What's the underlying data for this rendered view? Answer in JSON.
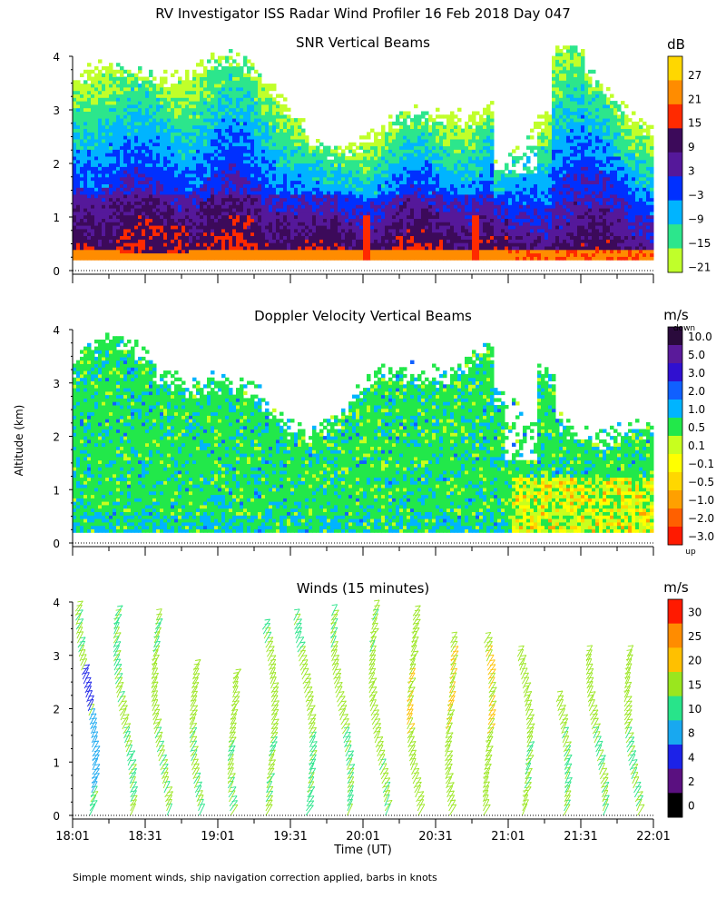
{
  "title": "RV Investigator ISS Radar Wind Profiler  16 Feb 2018 Day 047",
  "ylabel": "Altitude (km)",
  "xlabel": "Time (UT)",
  "footnote": "Simple moment winds, ship navigation correction applied, barbs in knots",
  "chart_data": [
    {
      "type": "heatmap",
      "title": "SNR Vertical Beams",
      "units": "dB",
      "ylim": [
        0,
        4
      ],
      "yticks": [
        "0",
        "1",
        "2",
        "3",
        "4"
      ],
      "colorbar_labels": [
        "27",
        "21",
        "15",
        "9",
        "3",
        "−3",
        "−9",
        "−15",
        "−21"
      ],
      "colorbar_colors": [
        "#ffd700",
        "#ff8c00",
        "#ff2a00",
        "#3c0a5a",
        "#55189a",
        "#0030ff",
        "#00b4ff",
        "#2ce68c",
        "#c0ff2a"
      ]
    },
    {
      "type": "heatmap",
      "title": "Doppler Velocity Vertical Beams",
      "units": "m/s",
      "top_note": "down",
      "bottom_note": "up",
      "ylim": [
        0,
        4
      ],
      "yticks": [
        "0",
        "1",
        "2",
        "3",
        "4"
      ],
      "colorbar_labels": [
        "10.0",
        "5.0",
        "3.0",
        "2.0",
        "1.0",
        "0.5",
        "0.1",
        "−0.1",
        "−0.5",
        "−1.0",
        "−2.0",
        "−3.0"
      ],
      "colorbar_colors": [
        "#2a0a3c",
        "#5a1a9a",
        "#3010d0",
        "#1060ff",
        "#00b4ff",
        "#22e84a",
        "#c8ff1e",
        "#ffff00",
        "#ffd700",
        "#ffa000",
        "#ff6000",
        "#ff1a00"
      ]
    },
    {
      "type": "wind-barbs",
      "title": "Winds (15 minutes)",
      "units": "m/s",
      "ylim": [
        0,
        4
      ],
      "yticks": [
        "0",
        "1",
        "2",
        "3",
        "4"
      ],
      "xticks": [
        "18:01",
        "18:31",
        "19:01",
        "19:31",
        "20:01",
        "20:31",
        "21:01",
        "21:31",
        "22:01"
      ],
      "colorbar_labels": [
        "30",
        "25",
        "20",
        "15",
        "10",
        "8",
        "4",
        "2",
        "0"
      ],
      "colorbar_colors": [
        "#ff1a00",
        "#ff8c00",
        "#ffc000",
        "#9ae61e",
        "#28e48a",
        "#18a8f0",
        "#1c22e8",
        "#5a1080",
        "#000000"
      ],
      "profile_times": [
        "18:08",
        "18:23",
        "18:38",
        "18:53",
        "19:08",
        "19:23",
        "19:38",
        "19:53",
        "20:08",
        "20:23",
        "20:38",
        "20:53",
        "21:08",
        "21:23",
        "21:38",
        "21:53"
      ],
      "profile_top_km": [
        3.9,
        3.8,
        3.7,
        2.8,
        2.6,
        3.5,
        3.7,
        3.8,
        3.9,
        3.8,
        3.3,
        3.3,
        3.0,
        2.2,
        3.0,
        3.0
      ],
      "dominant_speed_ms": [
        12,
        11,
        12,
        12,
        12,
        12,
        12,
        12,
        13,
        14,
        15,
        15,
        13,
        12,
        12,
        12
      ]
    }
  ]
}
